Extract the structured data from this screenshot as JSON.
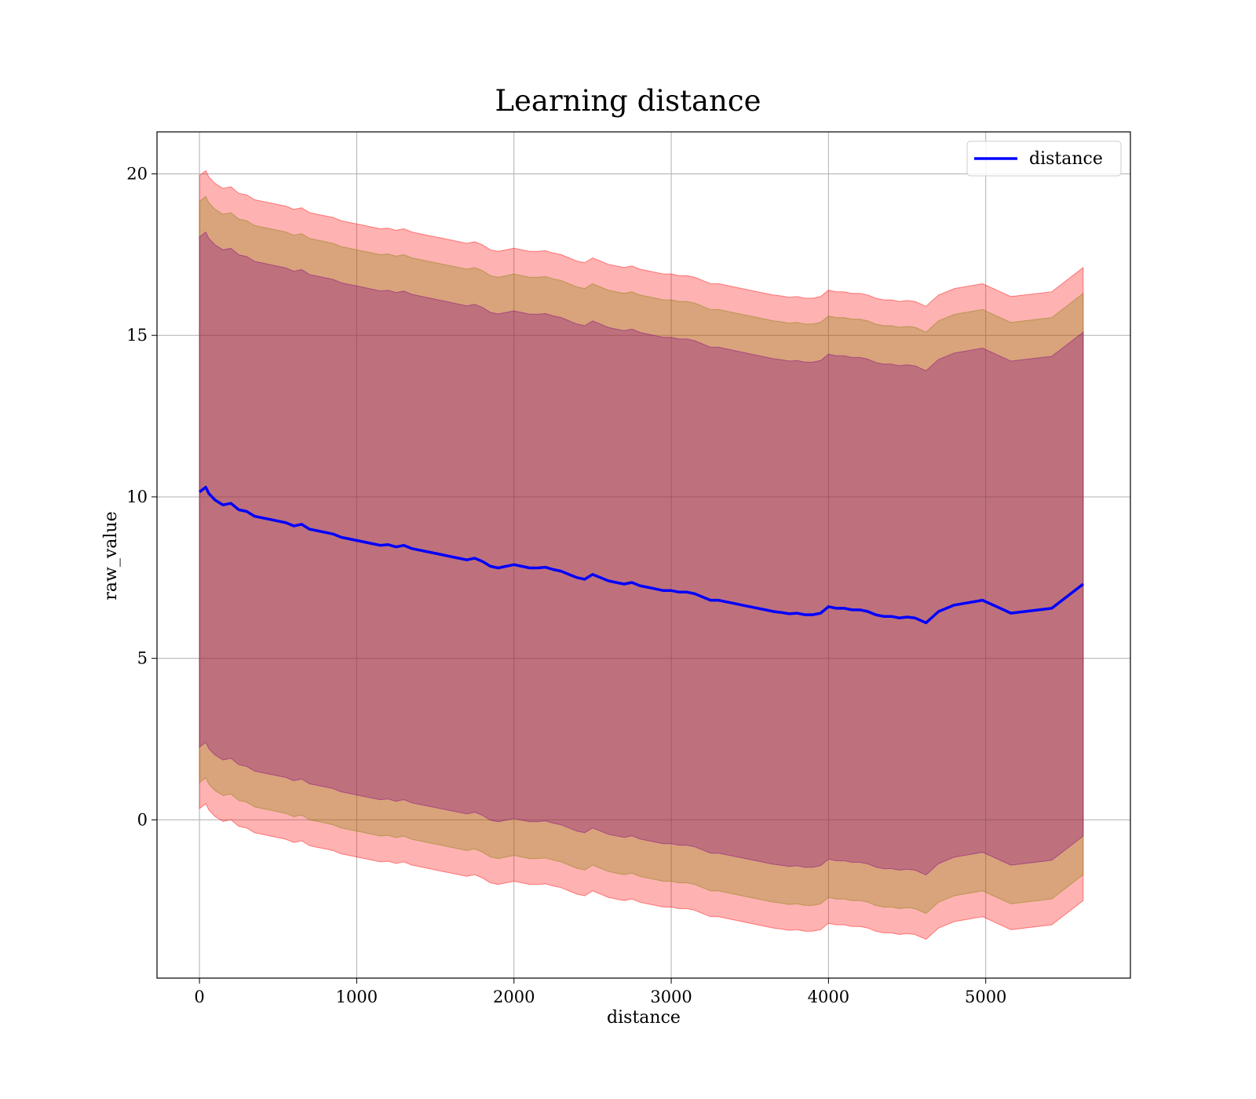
{
  "chart_data": {
    "type": "line",
    "title": "Learning distance",
    "xlabel": "distance",
    "ylabel": "raw_value",
    "xlim": [
      -270,
      5920
    ],
    "ylim": [
      -4.9,
      21.3
    ],
    "xticks": [
      0,
      1000,
      2000,
      3000,
      4000,
      5000
    ],
    "yticks": [
      0,
      5,
      10,
      15,
      20
    ],
    "grid": true,
    "legend_position": "top-right",
    "series": [
      {
        "name": "distance",
        "color": "#0000ff",
        "x": [
          0,
          40,
          60,
          100,
          150,
          200,
          250,
          300,
          350,
          400,
          450,
          500,
          550,
          600,
          650,
          700,
          750,
          800,
          850,
          900,
          950,
          1000,
          1050,
          1100,
          1150,
          1200,
          1250,
          1300,
          1350,
          1400,
          1450,
          1500,
          1550,
          1600,
          1650,
          1700,
          1750,
          1800,
          1850,
          1900,
          1950,
          2000,
          2050,
          2100,
          2150,
          2200,
          2250,
          2300,
          2350,
          2400,
          2450,
          2500,
          2550,
          2600,
          2650,
          2700,
          2750,
          2800,
          2850,
          2900,
          2950,
          3000,
          3050,
          3100,
          3150,
          3200,
          3250,
          3300,
          3350,
          3400,
          3450,
          3500,
          3550,
          3600,
          3650,
          3700,
          3750,
          3800,
          3850,
          3900,
          3950,
          4000,
          4050,
          4100,
          4150,
          4200,
          4250,
          4300,
          4350,
          4400,
          4450,
          4500,
          4550,
          4620,
          4700,
          4800,
          4980,
          5160,
          5420,
          5620
        ],
        "y": [
          10.15,
          10.3,
          10.1,
          9.9,
          9.75,
          9.8,
          9.6,
          9.55,
          9.4,
          9.35,
          9.3,
          9.25,
          9.2,
          9.1,
          9.15,
          9.0,
          8.95,
          8.9,
          8.85,
          8.75,
          8.7,
          8.65,
          8.6,
          8.55,
          8.5,
          8.52,
          8.45,
          8.5,
          8.4,
          8.35,
          8.3,
          8.25,
          8.2,
          8.15,
          8.1,
          8.05,
          8.1,
          8.0,
          7.85,
          7.8,
          7.85,
          7.9,
          7.85,
          7.8,
          7.8,
          7.82,
          7.75,
          7.7,
          7.6,
          7.5,
          7.45,
          7.6,
          7.5,
          7.4,
          7.35,
          7.3,
          7.35,
          7.25,
          7.2,
          7.15,
          7.1,
          7.1,
          7.05,
          7.05,
          7.0,
          6.9,
          6.8,
          6.8,
          6.75,
          6.7,
          6.65,
          6.6,
          6.55,
          6.5,
          6.45,
          6.42,
          6.38,
          6.4,
          6.35,
          6.35,
          6.4,
          6.6,
          6.55,
          6.55,
          6.5,
          6.5,
          6.45,
          6.35,
          6.3,
          6.3,
          6.25,
          6.28,
          6.25,
          6.1,
          6.45,
          6.65,
          6.8,
          6.4,
          6.55,
          7.3
        ]
      }
    ],
    "bands": [
      {
        "sigma": 1,
        "color": "#800080",
        "opacity": 0.3,
        "halfwidth_start": 7.9,
        "halfwidth_end": 7.8
      },
      {
        "sigma": 2,
        "color": "#808000",
        "opacity": 0.3,
        "halfwidth_start": 9.0,
        "halfwidth_end": 9.0
      },
      {
        "sigma": 3,
        "color": "#ff0000",
        "opacity": 0.3,
        "halfwidth_start": 9.8,
        "halfwidth_end": 9.8
      }
    ]
  }
}
